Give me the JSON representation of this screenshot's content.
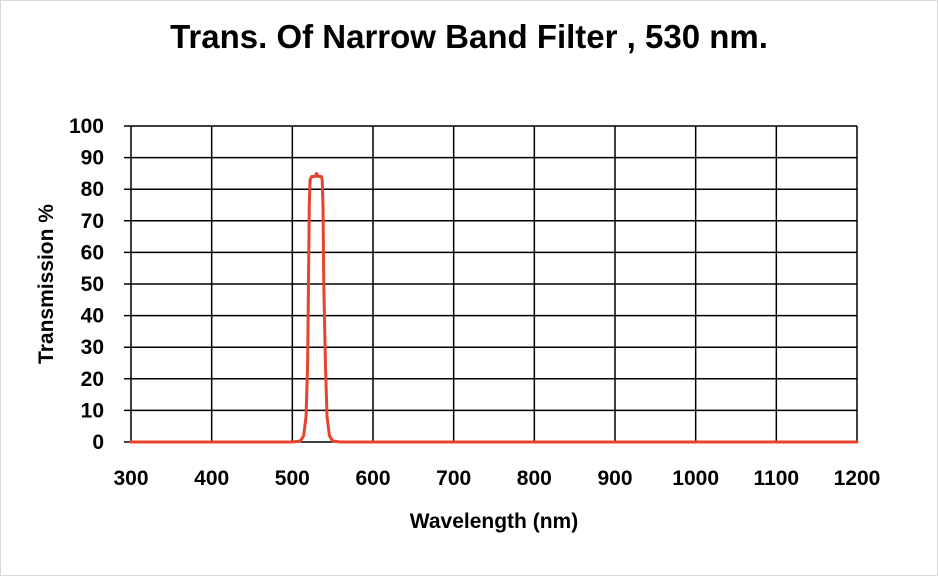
{
  "chart_data": {
    "type": "line",
    "title": "Trans. Of Narrow Band Filter , 530 nm.",
    "xlabel": "Wavelength (nm)",
    "ylabel": "Transmission %",
    "xlim": [
      300,
      1200
    ],
    "ylim": [
      0,
      100
    ],
    "x_ticks": [
      300,
      400,
      500,
      600,
      700,
      800,
      900,
      1000,
      1100,
      1200
    ],
    "y_ticks": [
      0,
      10,
      20,
      30,
      40,
      50,
      60,
      70,
      80,
      90,
      100
    ],
    "grid": true,
    "legend": "none",
    "series": [
      {
        "color": "#e8432c",
        "x": [
          300,
          500,
          510,
          514,
          517,
          519,
          520,
          521,
          522,
          524,
          526,
          528,
          530,
          532,
          534,
          536,
          537,
          538,
          539,
          541,
          543,
          546,
          550,
          560,
          1200
        ],
        "y": [
          0,
          0,
          0.3,
          2,
          8,
          25,
          50,
          75,
          83,
          84,
          84,
          84,
          85,
          84,
          84,
          84,
          83,
          75,
          50,
          25,
          8,
          2,
          0.3,
          0,
          0
        ]
      }
    ]
  }
}
